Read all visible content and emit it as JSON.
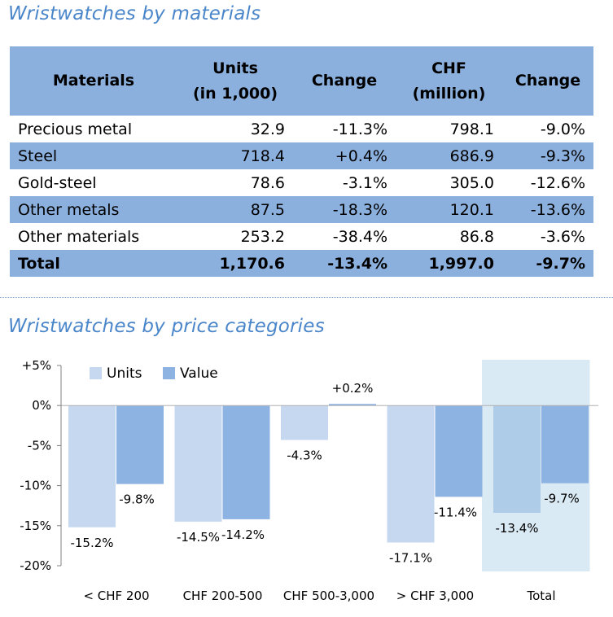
{
  "materials_section": {
    "title": "Wristwatches by materials",
    "headers": [
      "Materials",
      "Units\n(in 1,000)",
      "Change",
      "CHF\n(million)",
      "Change"
    ],
    "rows": [
      {
        "material": "Precious metal",
        "units": "32.9",
        "units_change": "-11.3%",
        "chf": "798.1",
        "chf_change": "-9.0%"
      },
      {
        "material": "Steel",
        "units": "718.4",
        "units_change": "+0.4%",
        "chf": "686.9",
        "chf_change": "-9.3%"
      },
      {
        "material": "Gold-steel",
        "units": "78.6",
        "units_change": "-3.1%",
        "chf": "305.0",
        "chf_change": "-12.6%"
      },
      {
        "material": "Other metals",
        "units": "87.5",
        "units_change": "-18.3%",
        "chf": "120.1",
        "chf_change": "-13.6%"
      },
      {
        "material": "Other materials",
        "units": "253.2",
        "units_change": "-38.4%",
        "chf": "86.8",
        "chf_change": "-3.6%"
      }
    ],
    "total": {
      "material": "Total",
      "units": "1,170.6",
      "units_change": "-13.4%",
      "chf": "1,997.0",
      "chf_change": "-9.7%"
    }
  },
  "price_section": {
    "title": "Wristwatches by price categories"
  },
  "chart_data": {
    "type": "bar",
    "title": "Wristwatches by price categories",
    "categories": [
      "< CHF 200",
      "CHF 200-500",
      "CHF 500-3,000",
      "> CHF 3,000",
      "Total"
    ],
    "series": [
      {
        "name": "Units",
        "values": [
          -15.2,
          -14.5,
          -4.3,
          -17.1,
          -13.4
        ],
        "labels": [
          "-15.2%",
          "-14.5%",
          "-4.3%",
          "-17.1%",
          "-13.4%"
        ],
        "color": "#c6d8f0",
        "highlight_color": "#aecbe8"
      },
      {
        "name": "Value",
        "values": [
          -9.8,
          -14.2,
          0.2,
          -11.4,
          -9.7
        ],
        "labels": [
          "-9.8%",
          "-14.2%",
          "+0.2%",
          "-11.4%",
          "-9.7%"
        ],
        "color": "#8db3e2",
        "highlight_color": "#8db3e2"
      }
    ],
    "yticks": [
      "+5%",
      "0%",
      "-5%",
      "-10%",
      "-15%",
      "-20%"
    ],
    "ytick_values": [
      5,
      0,
      -5,
      -10,
      -15,
      -20
    ],
    "ylim": [
      -20,
      5
    ],
    "highlighted_category": "Total",
    "highlight_band_color": "#daeaf4",
    "grid": false,
    "legend_position": "top-left"
  }
}
